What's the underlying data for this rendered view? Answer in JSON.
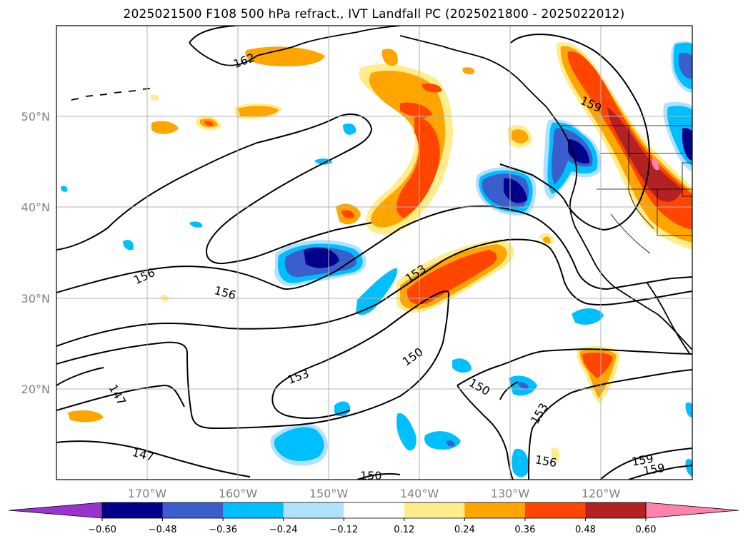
{
  "title": "2025021500 F108 500 hPa refract., IVT Landfall PC (2025021800 - 2025022012)",
  "map": {
    "lat_ticks": [
      "50°N",
      "40°N",
      "30°N",
      "20°N"
    ],
    "lon_ticks": [
      "170°W",
      "160°W",
      "150°W",
      "140°W",
      "130°W",
      "120°W"
    ],
    "contour_labels": [
      "162",
      "159",
      "156",
      "156",
      "153",
      "153",
      "150",
      "150",
      "153",
      "147",
      "147",
      "150",
      "156",
      "159",
      "159"
    ],
    "gridlines": true
  },
  "colorbar": {
    "ticks": [
      "−0.60",
      "−0.48",
      "−0.36",
      "−0.24",
      "−0.12",
      "0.12",
      "0.24",
      "0.36",
      "0.48",
      "0.60"
    ],
    "colors": [
      "#9a32cd",
      "#00008b",
      "#3a5fcd",
      "#00bfff",
      "#b0e2ff",
      "#ffffff",
      "#ffec8b",
      "#ffa500",
      "#ff4500",
      "#b22222",
      "#ff82ab"
    ],
    "extend": "both"
  }
}
